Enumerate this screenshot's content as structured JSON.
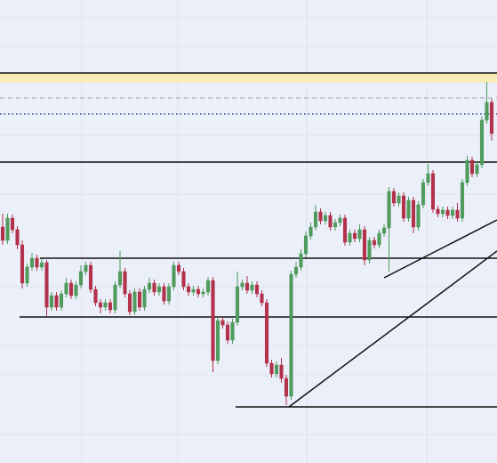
{
  "chart_data": {
    "type": "candlestick",
    "ylim": [
      0,
      520
    ],
    "up_color": "#4f9a5c",
    "down_color": "#b3304a",
    "open": [
      265,
      250,
      275,
      262,
      245,
      202,
      220,
      230,
      220,
      225,
      175,
      188,
      175,
      190,
      202,
      188,
      200,
      215,
      222,
      195,
      180,
      175,
      180,
      172,
      200,
      215,
      190,
      170,
      192,
      175,
      195,
      202,
      192,
      198,
      182,
      198,
      222,
      215,
      198,
      192,
      195,
      190,
      192,
      205,
      115,
      160,
      155,
      138,
      158,
      198,
      202,
      194,
      200,
      190,
      180,
      112,
      100,
      110,
      95,
      75,
      212,
      220,
      235,
      255,
      265,
      282,
      272,
      278,
      265,
      270,
      275,
      248,
      258,
      252,
      262,
      228,
      250,
      245,
      258,
      264,
      305,
      292,
      300,
      275,
      295,
      265,
      290,
      315,
      325,
      285,
      280,
      284,
      278,
      284,
      275,
      315,
      340,
      325,
      335,
      385,
      405
    ],
    "high": [
      280,
      280,
      279,
      266,
      250,
      224,
      236,
      234,
      229,
      228,
      192,
      192,
      194,
      208,
      206,
      204,
      222,
      226,
      226,
      199,
      184,
      184,
      184,
      204,
      238,
      219,
      194,
      196,
      196,
      199,
      208,
      206,
      202,
      202,
      202,
      226,
      226,
      219,
      202,
      199,
      199,
      196,
      209,
      209,
      164,
      164,
      159,
      162,
      215,
      206,
      210,
      204,
      204,
      194,
      184,
      116,
      114,
      118,
      99,
      216,
      226,
      240,
      260,
      270,
      290,
      286,
      282,
      282,
      274,
      279,
      279,
      262,
      262,
      268,
      266,
      254,
      254,
      262,
      268,
      310,
      309,
      304,
      304,
      299,
      299,
      294,
      319,
      336,
      329,
      289,
      288,
      288,
      288,
      292,
      319,
      345,
      344,
      339,
      389,
      428,
      409
    ],
    "low": [
      245,
      246,
      258,
      240,
      196,
      198,
      216,
      216,
      216,
      165,
      171,
      171,
      171,
      186,
      184,
      184,
      196,
      211,
      191,
      176,
      168,
      171,
      168,
      168,
      196,
      186,
      166,
      166,
      171,
      171,
      191,
      188,
      188,
      178,
      178,
      194,
      211,
      194,
      188,
      188,
      186,
      186,
      188,
      102,
      111,
      151,
      134,
      134,
      154,
      194,
      190,
      190,
      186,
      176,
      108,
      96,
      96,
      90,
      65,
      71,
      208,
      216,
      231,
      251,
      261,
      268,
      268,
      261,
      261,
      266,
      244,
      244,
      248,
      248,
      222,
      224,
      241,
      241,
      254,
      215,
      288,
      288,
      271,
      271,
      258,
      261,
      286,
      311,
      281,
      276,
      276,
      274,
      274,
      271,
      271,
      311,
      321,
      321,
      331,
      381,
      362
    ],
    "close": [
      250,
      275,
      262,
      245,
      202,
      220,
      230,
      220,
      225,
      175,
      188,
      175,
      190,
      202,
      188,
      200,
      215,
      222,
      195,
      180,
      175,
      180,
      172,
      200,
      215,
      190,
      170,
      192,
      175,
      195,
      202,
      192,
      198,
      182,
      198,
      222,
      215,
      198,
      192,
      195,
      190,
      192,
      205,
      115,
      160,
      155,
      138,
      158,
      198,
      202,
      194,
      200,
      190,
      180,
      112,
      100,
      110,
      95,
      75,
      212,
      220,
      235,
      255,
      265,
      282,
      272,
      278,
      265,
      270,
      275,
      248,
      258,
      252,
      262,
      228,
      250,
      245,
      258,
      264,
      305,
      292,
      300,
      275,
      295,
      265,
      290,
      315,
      325,
      285,
      280,
      284,
      278,
      284,
      275,
      315,
      340,
      325,
      335,
      385,
      405,
      370
    ]
  }
}
